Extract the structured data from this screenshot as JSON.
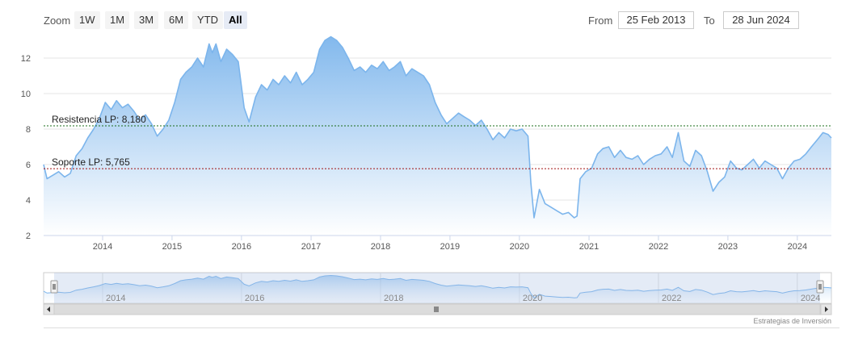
{
  "toolbar": {
    "zoom_label": "Zoom",
    "buttons": [
      "1W",
      "1M",
      "3M",
      "6M",
      "YTD",
      "All"
    ],
    "active_button": "All",
    "from_label": "From",
    "from_value": "25 Feb 2013",
    "to_label": "To",
    "to_value": "28 Jun 2024"
  },
  "credits": "Estrategias de Inversión",
  "colors": {
    "line": "#7cb5ec",
    "area_top": "#7cb5ec",
    "area_bottom": "#ffffff",
    "resistance": "#1a6e1a",
    "support": "#a01010",
    "grid": "#e6e6e6"
  },
  "chart_data": {
    "type": "area",
    "title": "",
    "xlabel": "",
    "ylabel": "",
    "ylim": [
      2,
      13
    ],
    "y_ticks": [
      2,
      4,
      6,
      8,
      10,
      12
    ],
    "x_ticks": [
      "2014",
      "2015",
      "2016",
      "2017",
      "2018",
      "2019",
      "2020",
      "2021",
      "2022",
      "2023",
      "2024"
    ],
    "x_range": [
      "2013-02-25",
      "2024-06-28"
    ],
    "grid": true,
    "annotations": [
      {
        "label": "Resistencia LP: 8,180",
        "value": 8.18,
        "kind": "resistance"
      },
      {
        "label": "Soporte LP: 5,765",
        "value": 5.765,
        "kind": "support"
      }
    ],
    "navigator_ticks": [
      "2014",
      "2016",
      "2018",
      "2020",
      "2022",
      "2024"
    ],
    "series": [
      {
        "x": [
          "2013-02-25",
          "2013-03-15",
          "2013-04-15",
          "2013-05-15",
          "2013-06-15",
          "2013-07-15",
          "2013-08-15",
          "2013-09-15",
          "2013-10-15",
          "2013-11-15",
          "2013-12-15",
          "2014-01-15",
          "2014-02-15",
          "2014-03-15",
          "2014-04-15",
          "2014-05-15",
          "2014-06-15",
          "2014-07-15",
          "2014-08-15",
          "2014-09-15",
          "2014-10-15",
          "2014-11-15",
          "2014-12-15",
          "2015-01-15",
          "2015-02-15",
          "2015-03-15",
          "2015-04-15",
          "2015-05-15",
          "2015-06-15",
          "2015-07-15",
          "2015-08-01",
          "2015-08-20",
          "2015-09-15",
          "2015-10-15",
          "2015-11-15",
          "2015-12-15",
          "2016-01-15",
          "2016-02-10",
          "2016-03-15",
          "2016-04-15",
          "2016-05-15",
          "2016-06-15",
          "2016-07-15",
          "2016-08-15",
          "2016-09-15",
          "2016-10-15",
          "2016-11-15",
          "2016-12-15",
          "2017-01-15",
          "2017-02-15",
          "2017-03-15",
          "2017-04-15",
          "2017-05-15",
          "2017-06-15",
          "2017-07-15",
          "2017-08-15",
          "2017-09-15",
          "2017-10-15",
          "2017-11-15",
          "2017-12-15",
          "2018-01-15",
          "2018-02-15",
          "2018-03-15",
          "2018-04-15",
          "2018-05-15",
          "2018-06-15",
          "2018-07-15",
          "2018-08-15",
          "2018-09-15",
          "2018-10-15",
          "2018-11-15",
          "2018-12-15",
          "2019-01-15",
          "2019-02-15",
          "2019-03-15",
          "2019-04-15",
          "2019-05-15",
          "2019-06-15",
          "2019-07-15",
          "2019-08-15",
          "2019-09-15",
          "2019-10-15",
          "2019-11-15",
          "2019-12-15",
          "2020-01-15",
          "2020-02-15",
          "2020-03-01",
          "2020-03-18",
          "2020-04-15",
          "2020-05-15",
          "2020-06-15",
          "2020-07-15",
          "2020-08-15",
          "2020-09-15",
          "2020-10-15",
          "2020-10-30",
          "2020-11-15",
          "2020-12-15",
          "2021-01-15",
          "2021-02-15",
          "2021-03-15",
          "2021-04-15",
          "2021-05-15",
          "2021-06-15",
          "2021-07-15",
          "2021-08-15",
          "2021-09-15",
          "2021-10-15",
          "2021-11-15",
          "2021-12-15",
          "2022-01-15",
          "2022-02-15",
          "2022-03-15",
          "2022-04-15",
          "2022-05-15",
          "2022-06-15",
          "2022-07-15",
          "2022-08-15",
          "2022-09-15",
          "2022-10-15",
          "2022-11-15",
          "2022-12-15",
          "2023-01-15",
          "2023-02-15",
          "2023-03-15",
          "2023-04-15",
          "2023-05-15",
          "2023-06-15",
          "2023-07-15",
          "2023-08-15",
          "2023-09-15",
          "2023-10-15",
          "2023-11-15",
          "2023-12-15",
          "2024-01-15",
          "2024-02-15",
          "2024-03-15",
          "2024-04-15",
          "2024-05-15",
          "2024-06-10",
          "2024-06-28"
        ],
        "y": [
          6.0,
          5.2,
          5.4,
          5.6,
          5.3,
          5.5,
          6.5,
          6.9,
          7.5,
          8.0,
          8.6,
          9.5,
          9.1,
          9.6,
          9.2,
          9.4,
          9.0,
          8.5,
          8.8,
          8.3,
          7.6,
          8.0,
          8.5,
          9.5,
          10.8,
          11.2,
          11.5,
          12.0,
          11.5,
          12.8,
          12.3,
          12.8,
          11.8,
          12.5,
          12.2,
          11.8,
          9.2,
          8.4,
          9.8,
          10.5,
          10.2,
          10.8,
          10.5,
          11.0,
          10.6,
          11.2,
          10.5,
          10.8,
          11.2,
          12.5,
          13.0,
          13.2,
          13.0,
          12.6,
          12.0,
          11.3,
          11.5,
          11.2,
          11.6,
          11.4,
          11.8,
          11.3,
          11.5,
          11.8,
          11.0,
          11.4,
          11.2,
          11.0,
          10.5,
          9.5,
          8.8,
          8.3,
          8.6,
          8.9,
          8.7,
          8.5,
          8.2,
          8.5,
          8.0,
          7.4,
          7.8,
          7.5,
          8.0,
          7.9,
          8.0,
          7.6,
          5.0,
          3.0,
          4.6,
          3.8,
          3.6,
          3.4,
          3.2,
          3.3,
          3.0,
          3.1,
          5.2,
          5.6,
          5.8,
          6.6,
          6.9,
          7.0,
          6.4,
          6.8,
          6.4,
          6.3,
          6.5,
          6.0,
          6.3,
          6.5,
          6.6,
          7.0,
          6.4,
          7.8,
          6.2,
          5.9,
          6.8,
          6.5,
          5.6,
          4.5,
          5.0,
          5.3,
          6.2,
          5.8,
          5.7,
          6.0,
          6.3,
          5.8,
          6.2,
          6.0,
          5.8,
          5.2,
          5.8,
          6.2,
          6.3,
          6.6,
          7.0,
          7.4,
          7.8,
          7.7,
          7.5
        ]
      }
    ]
  }
}
